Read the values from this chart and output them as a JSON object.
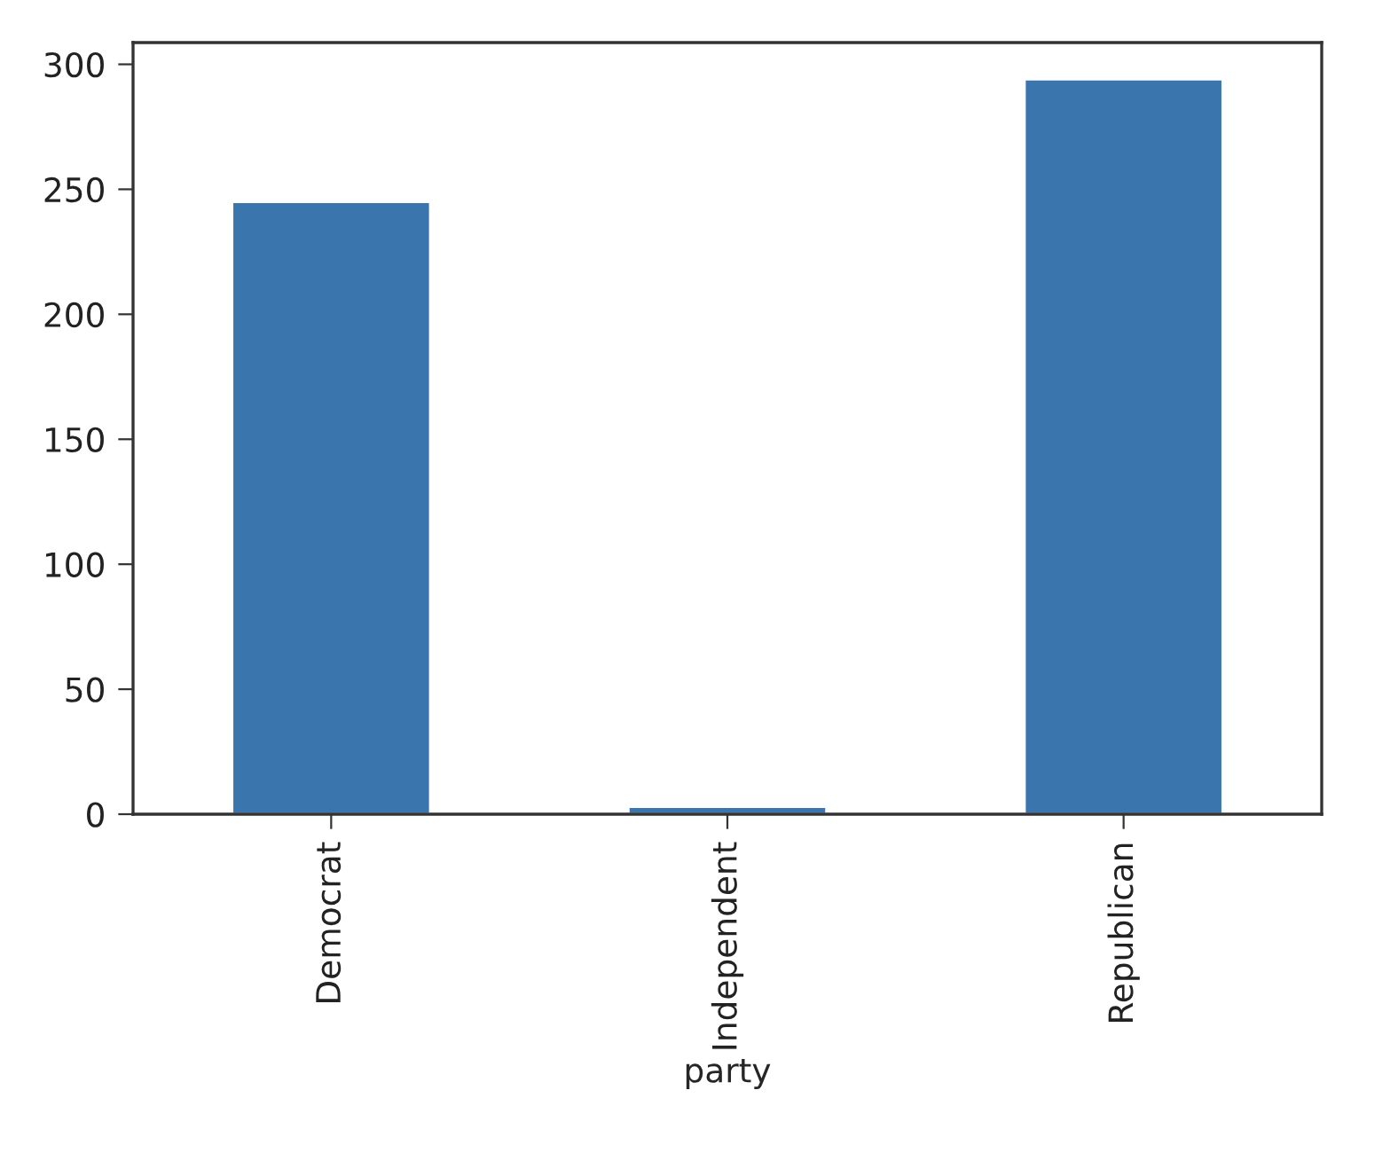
{
  "chart_data": {
    "type": "bar",
    "xlabel": "party",
    "categories": [
      "Democrat",
      "Independent",
      "Republican"
    ],
    "values": [
      245,
      3,
      294
    ],
    "color": "#3a75ae",
    "ylim": [
      0,
      308.7
    ],
    "yticks": [
      0,
      50,
      100,
      150,
      200,
      250,
      300
    ]
  }
}
